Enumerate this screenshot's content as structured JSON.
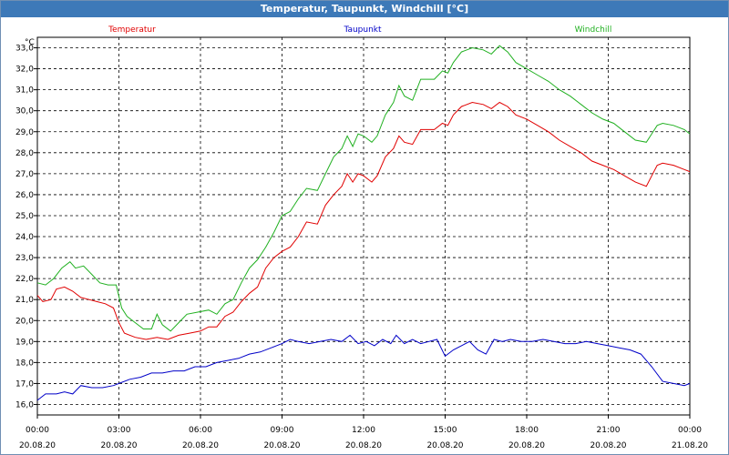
{
  "window": {
    "title": "Temperatur, Taupunkt, Windchill [°C]"
  },
  "chart_data": {
    "type": "line",
    "title": "Temperatur, Taupunkt, Windchill [°C]",
    "ylabel": "°C",
    "ylim": [
      15.5,
      33.5
    ],
    "yticks": [
      "16,0",
      "17,0",
      "18,0",
      "19,0",
      "20,0",
      "21,0",
      "22,0",
      "23,0",
      "24,0",
      "25,0",
      "26,0",
      "27,0",
      "28,0",
      "29,0",
      "30,0",
      "31,0",
      "32,0",
      "33,0"
    ],
    "xlim": [
      0,
      24
    ],
    "xticks": [
      {
        "x": 0,
        "time": "00:00",
        "date": "20.08.20"
      },
      {
        "x": 3,
        "time": "03:00",
        "date": "20.08.20"
      },
      {
        "x": 6,
        "time": "06:00",
        "date": "20.08.20"
      },
      {
        "x": 9,
        "time": "09:00",
        "date": "20.08.20"
      },
      {
        "x": 12,
        "time": "12:00",
        "date": "20.08.20"
      },
      {
        "x": 15,
        "time": "15:00",
        "date": "20.08.20"
      },
      {
        "x": 18,
        "time": "18:00",
        "date": "20.08.20"
      },
      {
        "x": 21,
        "time": "21:00",
        "date": "20.08.20"
      },
      {
        "x": 24,
        "time": "00:00",
        "date": "21.08.20"
      }
    ],
    "grid": true,
    "series": [
      {
        "name": "Temperatur",
        "color": "#e00000",
        "points": [
          [
            0,
            21.2
          ],
          [
            0.2,
            20.9
          ],
          [
            0.5,
            21.0
          ],
          [
            0.7,
            21.5
          ],
          [
            1.0,
            21.6
          ],
          [
            1.3,
            21.4
          ],
          [
            1.6,
            21.1
          ],
          [
            1.9,
            21.0
          ],
          [
            2.2,
            20.9
          ],
          [
            2.5,
            20.8
          ],
          [
            2.8,
            20.6
          ],
          [
            3.0,
            19.9
          ],
          [
            3.2,
            19.4
          ],
          [
            3.6,
            19.2
          ],
          [
            4.0,
            19.1
          ],
          [
            4.4,
            19.2
          ],
          [
            4.8,
            19.1
          ],
          [
            5.2,
            19.3
          ],
          [
            5.6,
            19.4
          ],
          [
            6.0,
            19.5
          ],
          [
            6.3,
            19.7
          ],
          [
            6.6,
            19.7
          ],
          [
            6.9,
            20.2
          ],
          [
            7.2,
            20.4
          ],
          [
            7.5,
            20.9
          ],
          [
            7.8,
            21.3
          ],
          [
            8.1,
            21.6
          ],
          [
            8.4,
            22.5
          ],
          [
            8.7,
            23.0
          ],
          [
            9.0,
            23.3
          ],
          [
            9.3,
            23.5
          ],
          [
            9.6,
            24.0
          ],
          [
            9.9,
            24.7
          ],
          [
            10.3,
            24.6
          ],
          [
            10.6,
            25.5
          ],
          [
            10.9,
            26.0
          ],
          [
            11.2,
            26.4
          ],
          [
            11.4,
            27.0
          ],
          [
            11.6,
            26.6
          ],
          [
            11.8,
            27.0
          ],
          [
            12.0,
            26.9
          ],
          [
            12.3,
            26.6
          ],
          [
            12.5,
            26.9
          ],
          [
            12.8,
            27.8
          ],
          [
            13.1,
            28.2
          ],
          [
            13.3,
            28.8
          ],
          [
            13.5,
            28.5
          ],
          [
            13.8,
            28.4
          ],
          [
            14.1,
            29.1
          ],
          [
            14.6,
            29.1
          ],
          [
            14.9,
            29.4
          ],
          [
            15.1,
            29.3
          ],
          [
            15.3,
            29.8
          ],
          [
            15.6,
            30.2
          ],
          [
            16.0,
            30.4
          ],
          [
            16.4,
            30.3
          ],
          [
            16.7,
            30.1
          ],
          [
            17.0,
            30.4
          ],
          [
            17.3,
            30.2
          ],
          [
            17.6,
            29.8
          ],
          [
            18.0,
            29.6
          ],
          [
            18.4,
            29.3
          ],
          [
            18.8,
            29.0
          ],
          [
            19.2,
            28.6
          ],
          [
            19.6,
            28.3
          ],
          [
            20.0,
            28.0
          ],
          [
            20.4,
            27.6
          ],
          [
            20.8,
            27.4
          ],
          [
            21.2,
            27.2
          ],
          [
            21.6,
            26.9
          ],
          [
            22.0,
            26.6
          ],
          [
            22.4,
            26.4
          ],
          [
            22.6,
            26.9
          ],
          [
            22.8,
            27.4
          ],
          [
            23.0,
            27.5
          ],
          [
            23.4,
            27.4
          ],
          [
            23.8,
            27.2
          ],
          [
            24.0,
            27.1
          ]
        ]
      },
      {
        "name": "Taupunkt",
        "color": "#0000c8",
        "points": [
          [
            0,
            16.2
          ],
          [
            0.3,
            16.5
          ],
          [
            0.7,
            16.5
          ],
          [
            1.0,
            16.6
          ],
          [
            1.3,
            16.5
          ],
          [
            1.6,
            16.9
          ],
          [
            2.0,
            16.8
          ],
          [
            2.4,
            16.8
          ],
          [
            2.8,
            16.9
          ],
          [
            3.0,
            17.0
          ],
          [
            3.4,
            17.2
          ],
          [
            3.8,
            17.3
          ],
          [
            4.2,
            17.5
          ],
          [
            4.6,
            17.5
          ],
          [
            5.0,
            17.6
          ],
          [
            5.4,
            17.6
          ],
          [
            5.8,
            17.8
          ],
          [
            6.2,
            17.8
          ],
          [
            6.6,
            18.0
          ],
          [
            7.0,
            18.1
          ],
          [
            7.4,
            18.2
          ],
          [
            7.8,
            18.4
          ],
          [
            8.2,
            18.5
          ],
          [
            8.6,
            18.7
          ],
          [
            9.0,
            18.9
          ],
          [
            9.3,
            19.1
          ],
          [
            9.6,
            19.0
          ],
          [
            10.0,
            18.9
          ],
          [
            10.4,
            19.0
          ],
          [
            10.8,
            19.1
          ],
          [
            11.2,
            19.0
          ],
          [
            11.5,
            19.3
          ],
          [
            11.8,
            18.9
          ],
          [
            12.1,
            19.0
          ],
          [
            12.4,
            18.8
          ],
          [
            12.7,
            19.1
          ],
          [
            13.0,
            18.9
          ],
          [
            13.2,
            19.3
          ],
          [
            13.5,
            18.9
          ],
          [
            13.8,
            19.1
          ],
          [
            14.1,
            18.9
          ],
          [
            14.4,
            19.0
          ],
          [
            14.7,
            19.1
          ],
          [
            15.0,
            18.3
          ],
          [
            15.3,
            18.6
          ],
          [
            15.6,
            18.8
          ],
          [
            15.9,
            19.0
          ],
          [
            16.2,
            18.6
          ],
          [
            16.5,
            18.4
          ],
          [
            16.8,
            19.1
          ],
          [
            17.1,
            19.0
          ],
          [
            17.4,
            19.1
          ],
          [
            17.8,
            19.0
          ],
          [
            18.2,
            19.0
          ],
          [
            18.6,
            19.1
          ],
          [
            19.0,
            19.0
          ],
          [
            19.4,
            18.9
          ],
          [
            19.8,
            18.9
          ],
          [
            20.2,
            19.0
          ],
          [
            20.6,
            18.9
          ],
          [
            21.0,
            18.8
          ],
          [
            21.4,
            18.7
          ],
          [
            21.8,
            18.6
          ],
          [
            22.2,
            18.4
          ],
          [
            22.6,
            17.8
          ],
          [
            23.0,
            17.1
          ],
          [
            23.4,
            17.0
          ],
          [
            23.8,
            16.9
          ],
          [
            24.0,
            17.0
          ]
        ]
      },
      {
        "name": "Windchill",
        "color": "#20b020",
        "points": [
          [
            0,
            21.8
          ],
          [
            0.3,
            21.7
          ],
          [
            0.6,
            22.0
          ],
          [
            0.9,
            22.5
          ],
          [
            1.2,
            22.8
          ],
          [
            1.4,
            22.5
          ],
          [
            1.7,
            22.6
          ],
          [
            2.0,
            22.2
          ],
          [
            2.3,
            21.8
          ],
          [
            2.6,
            21.7
          ],
          [
            2.9,
            21.7
          ],
          [
            3.1,
            20.6
          ],
          [
            3.3,
            20.2
          ],
          [
            3.6,
            19.9
          ],
          [
            3.9,
            19.6
          ],
          [
            4.2,
            19.6
          ],
          [
            4.4,
            20.3
          ],
          [
            4.6,
            19.8
          ],
          [
            4.9,
            19.5
          ],
          [
            5.2,
            19.9
          ],
          [
            5.5,
            20.3
          ],
          [
            5.9,
            20.4
          ],
          [
            6.3,
            20.5
          ],
          [
            6.6,
            20.3
          ],
          [
            6.9,
            20.8
          ],
          [
            7.2,
            21.0
          ],
          [
            7.5,
            21.8
          ],
          [
            7.8,
            22.5
          ],
          [
            8.1,
            22.9
          ],
          [
            8.4,
            23.5
          ],
          [
            8.7,
            24.2
          ],
          [
            9.0,
            25.0
          ],
          [
            9.3,
            25.2
          ],
          [
            9.6,
            25.8
          ],
          [
            9.9,
            26.3
          ],
          [
            10.3,
            26.2
          ],
          [
            10.6,
            27.0
          ],
          [
            10.9,
            27.8
          ],
          [
            11.2,
            28.2
          ],
          [
            11.4,
            28.8
          ],
          [
            11.6,
            28.3
          ],
          [
            11.8,
            28.9
          ],
          [
            12.0,
            28.8
          ],
          [
            12.3,
            28.5
          ],
          [
            12.5,
            28.8
          ],
          [
            12.8,
            29.8
          ],
          [
            13.1,
            30.4
          ],
          [
            13.3,
            31.2
          ],
          [
            13.5,
            30.7
          ],
          [
            13.8,
            30.5
          ],
          [
            14.1,
            31.5
          ],
          [
            14.6,
            31.5
          ],
          [
            14.9,
            31.9
          ],
          [
            15.1,
            31.8
          ],
          [
            15.3,
            32.3
          ],
          [
            15.6,
            32.8
          ],
          [
            16.0,
            33.0
          ],
          [
            16.4,
            32.9
          ],
          [
            16.7,
            32.7
          ],
          [
            17.0,
            33.1
          ],
          [
            17.3,
            32.8
          ],
          [
            17.6,
            32.3
          ],
          [
            18.0,
            32.0
          ],
          [
            18.4,
            31.7
          ],
          [
            18.8,
            31.4
          ],
          [
            19.2,
            31.0
          ],
          [
            19.6,
            30.7
          ],
          [
            20.0,
            30.3
          ],
          [
            20.4,
            29.9
          ],
          [
            20.8,
            29.6
          ],
          [
            21.2,
            29.4
          ],
          [
            21.6,
            29.0
          ],
          [
            22.0,
            28.6
          ],
          [
            22.4,
            28.5
          ],
          [
            22.6,
            28.9
          ],
          [
            22.8,
            29.3
          ],
          [
            23.0,
            29.4
          ],
          [
            23.4,
            29.3
          ],
          [
            23.8,
            29.1
          ],
          [
            24.0,
            28.9
          ]
        ]
      }
    ]
  }
}
